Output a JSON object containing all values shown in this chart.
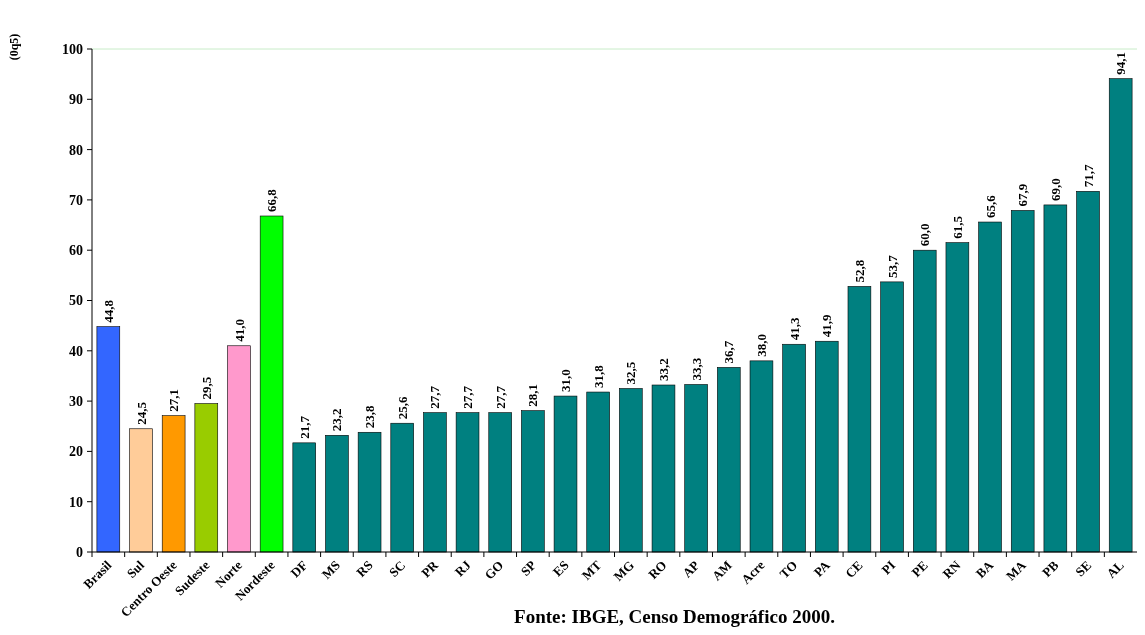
{
  "chart_data": {
    "type": "bar",
    "ylabel": "(0q5)",
    "categories": [
      "Brasil",
      "Sul",
      "Centro Oeste",
      "Sudeste",
      "Norte",
      "Nordeste",
      "DF",
      "MS",
      "RS",
      "SC",
      "PR",
      "RJ",
      "GO",
      "SP",
      "ES",
      "MT",
      "MG",
      "RO",
      "AP",
      "AM",
      "Acre",
      "TO",
      "PA",
      "CE",
      "PI",
      "PE",
      "RN",
      "BA",
      "MA",
      "PB",
      "SE",
      "AL"
    ],
    "values": [
      44.8,
      24.5,
      27.1,
      29.5,
      41.0,
      66.8,
      21.7,
      23.2,
      23.8,
      25.6,
      27.7,
      27.7,
      27.7,
      28.1,
      31.0,
      31.8,
      32.5,
      33.2,
      33.3,
      36.7,
      38.0,
      41.3,
      41.9,
      52.8,
      53.7,
      60.0,
      61.5,
      65.6,
      67.9,
      69.0,
      71.7,
      94.1
    ],
    "value_labels": [
      "44,8",
      "24,5",
      "27,1",
      "29,5",
      "41,0",
      "66,8",
      "21,7",
      "23,2",
      "23,8",
      "25,6",
      "27,7",
      "27,7",
      "27,7",
      "28,1",
      "31,0",
      "31,8",
      "32,5",
      "33,2",
      "33,3",
      "36,7",
      "38,0",
      "41,3",
      "41,9",
      "52,8",
      "53,7",
      "60,0",
      "61,5",
      "65,6",
      "67,9",
      "69,0",
      "71,7",
      "94,1"
    ],
    "colors": [
      "#3366ff",
      "#ffcc99",
      "#ff9900",
      "#99cc00",
      "#ff99cc",
      "#00ff00",
      "#008080",
      "#008080",
      "#008080",
      "#008080",
      "#008080",
      "#008080",
      "#008080",
      "#008080",
      "#008080",
      "#008080",
      "#008080",
      "#008080",
      "#008080",
      "#008080",
      "#008080",
      "#008080",
      "#008080",
      "#008080",
      "#008080",
      "#008080",
      "#008080",
      "#008080",
      "#008080",
      "#008080",
      "#008080",
      "#008080"
    ],
    "ylim": [
      0,
      100
    ],
    "yticks": [
      0,
      10,
      20,
      30,
      40,
      50,
      60,
      70,
      80,
      90,
      100
    ],
    "annotations": [
      "Fonte: IBGE, Censo Demográfico 2000."
    ]
  }
}
